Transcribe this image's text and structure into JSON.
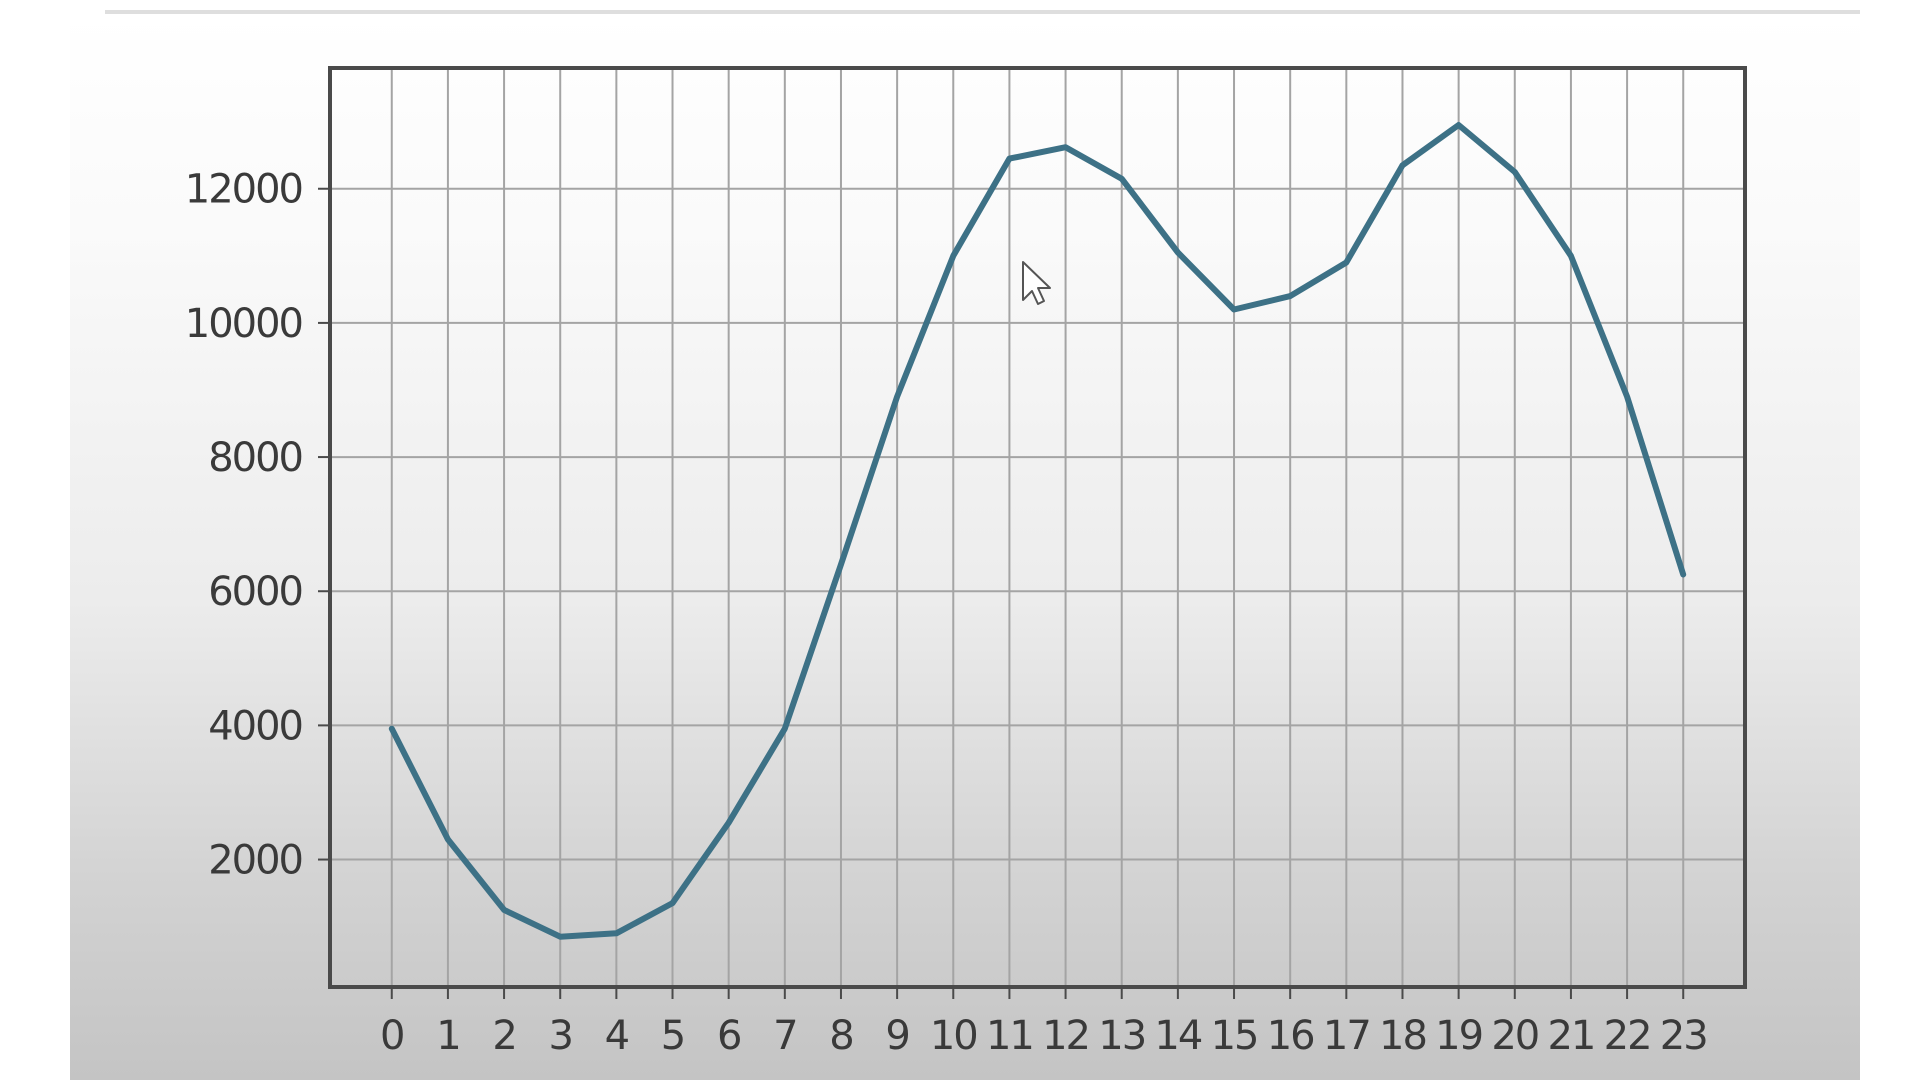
{
  "chart_data": {
    "type": "line",
    "title": "",
    "xlabel": "",
    "ylabel": "",
    "x": [
      0,
      1,
      2,
      3,
      4,
      5,
      6,
      7,
      8,
      9,
      10,
      11,
      12,
      13,
      14,
      15,
      16,
      17,
      18,
      19,
      20,
      21,
      22,
      23
    ],
    "x_tick_labels": [
      "0",
      "1",
      "2",
      "3",
      "4",
      "5",
      "6",
      "7",
      "8",
      "9",
      "10",
      "11",
      "12",
      "13",
      "14",
      "15",
      "16",
      "17",
      "18",
      "19",
      "20",
      "21",
      "22",
      "23"
    ],
    "series": [
      {
        "values": [
          3950,
          2300,
          1250,
          850,
          900,
          1350,
          2550,
          3950,
          6400,
          8900,
          11000,
          12450,
          12620,
          12150,
          11050,
          10200,
          10400,
          10900,
          12350,
          12950,
          12250,
          11000,
          8900,
          6250
        ]
      }
    ],
    "xlim": [
      -1.1,
      24.1
    ],
    "ylim": [
      100,
      13800
    ],
    "y_ticks": [
      2000,
      4000,
      6000,
      8000,
      10000,
      12000
    ],
    "y_tick_labels": [
      "2000",
      "4000",
      "6000",
      "8000",
      "10000",
      "12000"
    ],
    "grid": true,
    "line_color": "#3d7186",
    "grid_color": "#a4a4a4",
    "axes_color": "#4a4a4a"
  },
  "cursor": {
    "icon": "mouse-pointer-icon"
  }
}
